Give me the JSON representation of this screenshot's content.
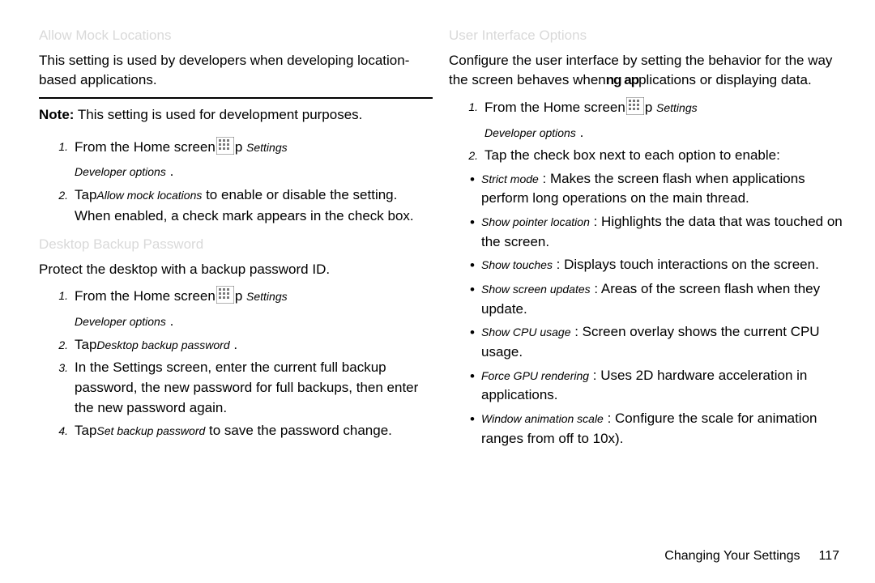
{
  "left": {
    "heading1": "Allow Mock Locations",
    "para1": "This setting is used by developers when developing location-based applications.",
    "note_label": "Note:",
    "note_body": " This setting is used for development purposes.",
    "step1_a": "From the Home screen",
    "step1_b": "p ",
    "step1_settings": "Settings",
    "step1_arrow": "  ",
    "step1_dev": "Developer options",
    "step1_period": "  .",
    "step2_a": "Tap",
    "step2_allow": "Allow mock locations",
    "step2_b": "   to enable or disable the setting.",
    "step2_c": "When enabled, a check mark appears in the check box.",
    "heading2": "Desktop Backup Password",
    "para2": "Protect the desktop with a backup password ID.",
    "d_step1_a": "From the Home screen",
    "d_step1_b": "p ",
    "d_step2_a": "Tap",
    "d_step2_b": "Desktop backup password",
    "d_step2_c": "  .",
    "d_step3": "In the Settings screen, enter the current full backup password, the new password for full backups, then enter the new password again.",
    "d_step4_a": "Tap",
    "d_step4_b": "Set backup password",
    "d_step4_c": "   to save the password change."
  },
  "right": {
    "heading1": "User Interface Options",
    "para1_a": "Configure the user interface by setting the behavior for the way the screen behaves when",
    "para1_b": "ng ap",
    "para1_c": "plications or displaying data.",
    "step1_a": "From the Home screen",
    "step1_b": "p ",
    "step1_settings": "Settings",
    "step1_dev": "Developer options",
    "step1_period": "  .",
    "step2": "Tap the check box next to each option to enable:",
    "opts": [
      {
        "term": "Strict mode",
        "desc": "  : Makes the screen flash when applications perform long operations on the main thread."
      },
      {
        "term": "Show pointer location",
        "desc": "   : Highlights the data that was touched on the screen."
      },
      {
        "term": "Show touches",
        "desc": "  : Displays touch interactions on the screen."
      },
      {
        "term": "Show screen updates",
        "desc": "   : Areas of the screen flash when they update."
      },
      {
        "term": "Show CPU usage",
        "desc": "  : Screen overlay shows the current CPU usage."
      },
      {
        "term": "Force GPU rendering",
        "desc": "   : Uses 2D hardware acceleration in applications."
      },
      {
        "term": "Window animation scale",
        "desc": "   : Configure the scale for animation ranges from off to 10x)."
      }
    ]
  },
  "footer": {
    "section": "Changing Your Settings",
    "page": "117"
  },
  "num": {
    "n1": "1.",
    "n2": "2.",
    "n3": "3.",
    "n4": "4."
  },
  "bullet": "•",
  "icon_fill": "#7a7a7a"
}
